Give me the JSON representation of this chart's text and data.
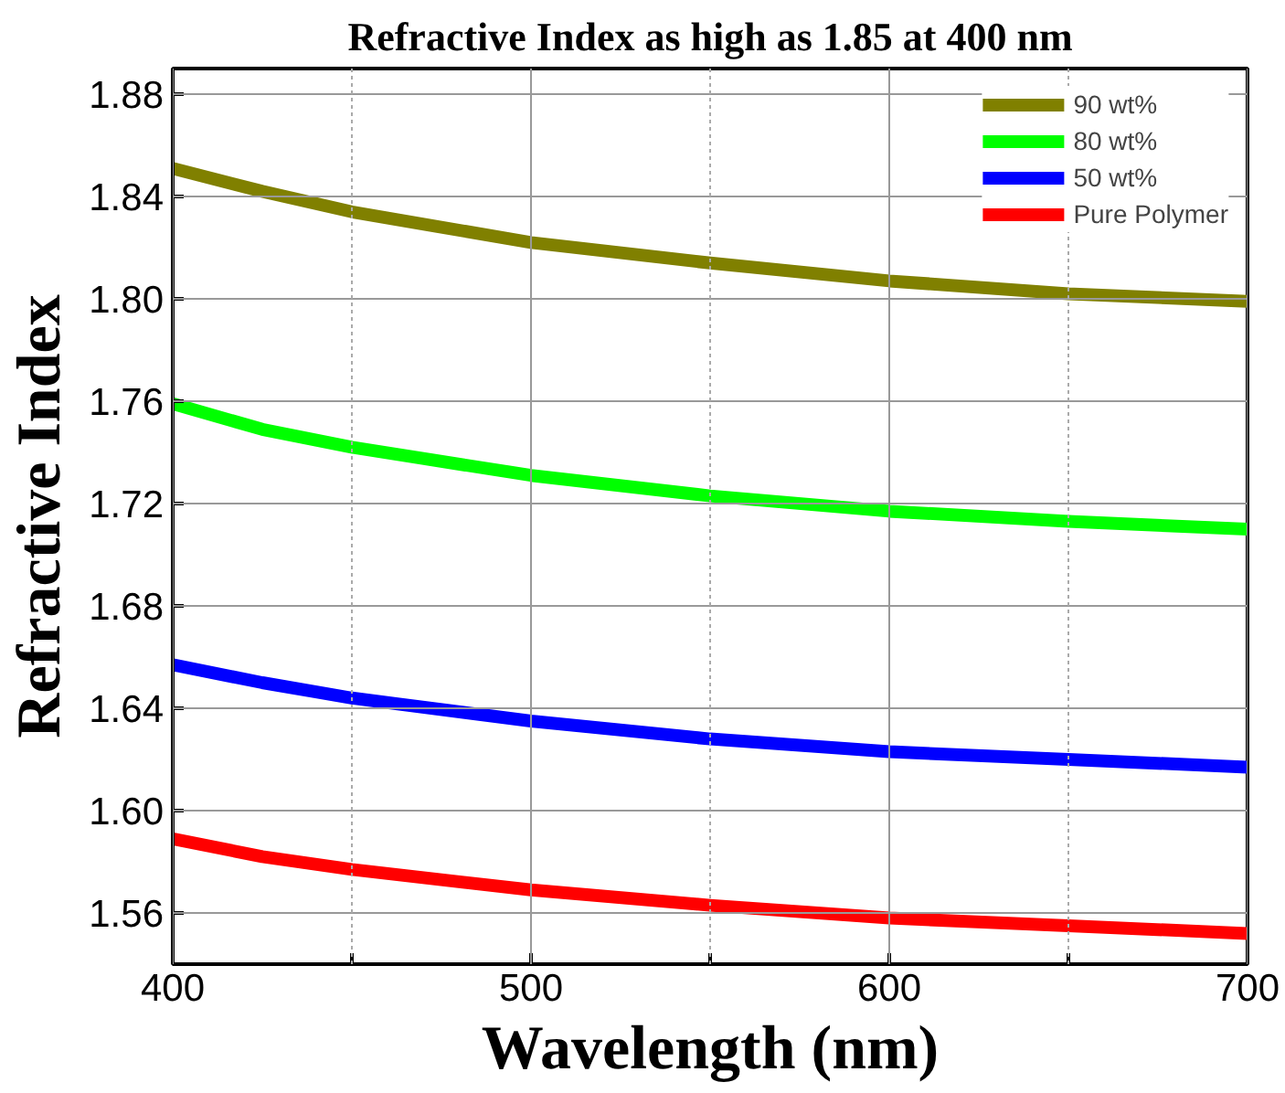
{
  "chart_data": {
    "type": "line",
    "title": "Refractive Index as high as 1.85 at 400 nm",
    "xlabel": "Wavelength (nm)",
    "ylabel": "Refractive Index",
    "x": [
      400,
      425,
      450,
      500,
      550,
      600,
      650,
      700
    ],
    "series": [
      {
        "name": "90 wt%",
        "color": "#808000",
        "values": [
          1.851,
          1.842,
          1.834,
          1.822,
          1.814,
          1.807,
          1.802,
          1.799
        ]
      },
      {
        "name": "80 wt%",
        "color": "#00ff00",
        "values": [
          1.759,
          1.749,
          1.742,
          1.731,
          1.723,
          1.717,
          1.713,
          1.71
        ]
      },
      {
        "name": "50 wt%",
        "color": "#0000ff",
        "values": [
          1.657,
          1.65,
          1.644,
          1.635,
          1.628,
          1.623,
          1.62,
          1.617
        ]
      },
      {
        "name": "Pure Polymer",
        "color": "#ff0000",
        "values": [
          1.589,
          1.582,
          1.577,
          1.569,
          1.563,
          1.558,
          1.555,
          1.552
        ]
      }
    ],
    "xlim": [
      400,
      700
    ],
    "ylim": [
      1.54,
      1.89
    ],
    "xticks": [
      400,
      {
        "value": 450,
        "label": null
      },
      500,
      {
        "value": 550,
        "label": null
      },
      600,
      {
        "value": 650,
        "label": null
      },
      700
    ],
    "yticks": [
      {
        "value": 1.56,
        "label": "1.56"
      },
      {
        "value": 1.6,
        "label": "1.60"
      },
      {
        "value": 1.64,
        "label": "1.64"
      },
      {
        "value": 1.68,
        "label": "1.68"
      },
      {
        "value": 1.72,
        "label": "1.72"
      },
      {
        "value": 1.76,
        "label": "1.76"
      },
      {
        "value": 1.8,
        "label": "1.80"
      },
      {
        "value": 1.84,
        "label": "1.84"
      },
      {
        "value": 1.88,
        "label": "1.88"
      }
    ],
    "grid": true,
    "legend": "top right",
    "marker": "none",
    "line_style": "solid"
  }
}
